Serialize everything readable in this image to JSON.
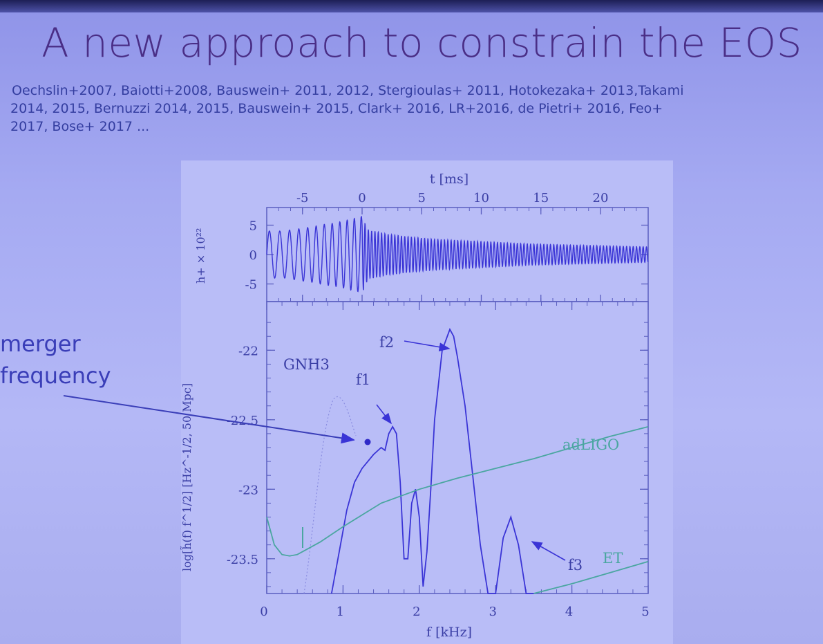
{
  "slide": {
    "title": "A new approach to constrain the EOS",
    "references": [
      "Oechslin+2007, Baiotti+2008, Bauswein+ 2011, 2012, Stergioulas+ 2011, Hotokezaka+ 2013,Takami",
      "2014, 2015, Bernuzzi 2014, 2015, Bauswein+ 2015, Clark+ 2016, LR+2016, de Pietri+ 2016, Feo+",
      "2017, Bose+ 2017 ..."
    ],
    "annotation": [
      "merger",
      "frequency"
    ],
    "colors": {
      "title": "#4a2e86",
      "refs": "#343ea0",
      "signal": "#3a34d6",
      "detector": "#4aa6a0"
    }
  },
  "top_plot": {
    "xlabel": "t [ms]",
    "xticks": [
      "-5",
      "0",
      "5",
      "10",
      "15",
      "20"
    ],
    "ylabel": "h+ × 10²²",
    "yticks": [
      "5",
      "0",
      "-5"
    ]
  },
  "bottom_plot": {
    "xlabel": "f [kHz]",
    "xticks": [
      "0",
      "1",
      "2",
      "3",
      "4",
      "5"
    ],
    "ylabel": "log[h̃(f) f^1/2] [Hz^-1/2, 50 Mpc]",
    "yticks": [
      "-22",
      "-22.5",
      "-23",
      "-23.5"
    ],
    "labels": {
      "eos": "GNH3",
      "f1": "f1",
      "f2": "f2",
      "f3": "f3",
      "adligo": "adLIGO",
      "et": "ET"
    }
  },
  "chart_data": [
    {
      "type": "line",
      "title": "",
      "xlabel": "t [ms]",
      "ylabel": "h+ × 10²²",
      "xlim": [
        -8,
        24
      ],
      "ylim": [
        -8,
        8
      ],
      "series": [
        {
          "name": "",
          "x": [
            -8,
            -7.5,
            -7,
            -6.5,
            -6,
            -5.5,
            -5,
            -4.5,
            -4,
            -3.5,
            -3,
            -2.5,
            -2,
            -1.5,
            -1,
            -0.5,
            0,
            0.3,
            0.6,
            1,
            2,
            4,
            6,
            8,
            10,
            12,
            14,
            16,
            18,
            20,
            22,
            24
          ],
          "y_envelope": [
            4,
            4,
            4,
            4,
            4.2,
            4.3,
            4.5,
            4.6,
            4.8,
            5,
            5.2,
            5.3,
            5.5,
            5.7,
            6,
            6.2,
            6.5,
            5,
            4,
            4,
            3.5,
            3,
            2.6,
            2.4,
            2.2,
            2,
            1.8,
            1.7,
            1.6,
            1.5,
            1.4,
            1.3
          ]
        }
      ]
    },
    {
      "type": "line",
      "title": "",
      "xlabel": "f [kHz]",
      "ylabel": "log[h̃(f) f^1/2] [Hz^-1/2, 50 Mpc]",
      "xlim": [
        0,
        5
      ],
      "ylim": [
        -23.75,
        -21.65
      ],
      "series": [
        {
          "name": "GNH3",
          "x": [
            0.85,
            0.95,
            1.05,
            1.15,
            1.25,
            1.4,
            1.5,
            1.55,
            1.6,
            1.65,
            1.7,
            1.75,
            1.8,
            1.85,
            1.9,
            1.95,
            2.0,
            2.05,
            2.1,
            2.15,
            2.2,
            2.3,
            2.4,
            2.45,
            2.5,
            2.6,
            2.7,
            2.8,
            2.9,
            2.95,
            3.0,
            3.1,
            3.2,
            3.3,
            3.4,
            3.45,
            3.5
          ],
          "y": [
            -23.75,
            -23.45,
            -23.15,
            -22.95,
            -22.85,
            -22.75,
            -22.7,
            -22.72,
            -22.6,
            -22.55,
            -22.6,
            -22.95,
            -23.5,
            -23.5,
            -23.1,
            -23.0,
            -23.2,
            -23.7,
            -23.45,
            -23.0,
            -22.5,
            -22.0,
            -21.85,
            -21.9,
            -22.05,
            -22.4,
            -22.9,
            -23.4,
            -23.75,
            -23.75,
            -23.75,
            -23.35,
            -23.2,
            -23.4,
            -23.75,
            -23.75,
            -23.75
          ]
        },
        {
          "name": "adLIGO",
          "x": [
            0.0,
            0.1,
            0.2,
            0.3,
            0.4,
            0.5,
            0.7,
            1.0,
            1.5,
            2.0,
            2.5,
            3.0,
            3.5,
            4.0,
            4.5,
            5.0
          ],
          "y": [
            -23.2,
            -23.4,
            -23.47,
            -23.48,
            -23.47,
            -23.44,
            -23.38,
            -23.27,
            -23.1,
            -23.0,
            -22.92,
            -22.85,
            -22.78,
            -22.7,
            -22.62,
            -22.55
          ]
        },
        {
          "name": "ET",
          "x": [
            3.5,
            4.0,
            4.5,
            5.0
          ],
          "y": [
            -23.75,
            -23.68,
            -23.6,
            -23.52
          ]
        }
      ]
    }
  ]
}
